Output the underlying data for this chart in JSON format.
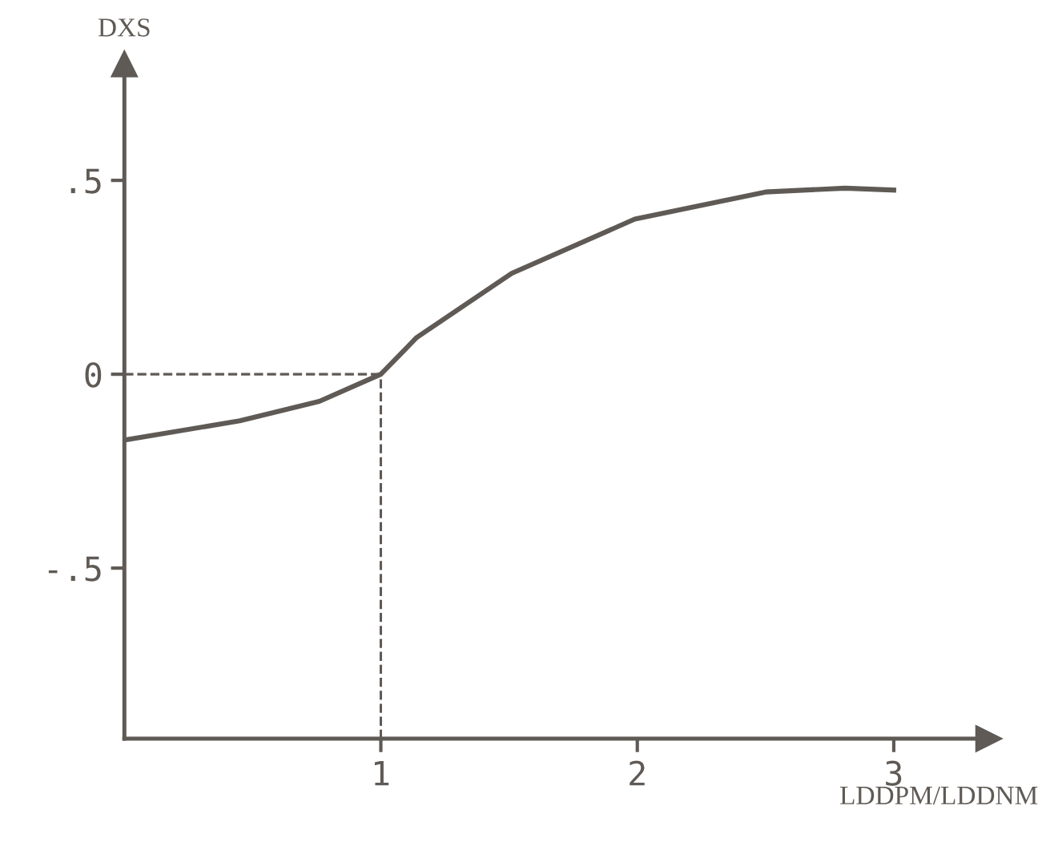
{
  "chart_data": {
    "type": "line",
    "xlabel": "LDDPM/LDDNM",
    "ylabel": "DXS",
    "x": [
      0,
      0.45,
      0.76,
      1.0,
      1.14,
      1.51,
      1.99,
      2.5,
      2.81,
      3.0
    ],
    "series": [
      {
        "color": "#5f5a55",
        "values": [
          -0.17,
          -0.12,
          -0.07,
          0,
          0.095,
          0.26,
          0.4,
          0.47,
          0.48,
          0.475
        ]
      }
    ],
    "xlim": [
      0,
      3.37
    ],
    "ylim": [
      -0.94,
      0.8
    ],
    "xticks": [
      1,
      2,
      3
    ],
    "yticks": [
      {
        "value": 0.5,
        "label": ".5"
      },
      0,
      {
        "value": -0.5,
        "label": "-.5"
      }
    ],
    "ref_lines": [
      {
        "axis": "x",
        "value": 1,
        "line_style": "dashed",
        "color": "#5f5a55"
      },
      {
        "axis": "y",
        "value": 0,
        "line_style": "dashed",
        "color": "#5f5a55"
      }
    ],
    "grid": false,
    "legend": false,
    "marker": "none",
    "line_style": "solid"
  }
}
